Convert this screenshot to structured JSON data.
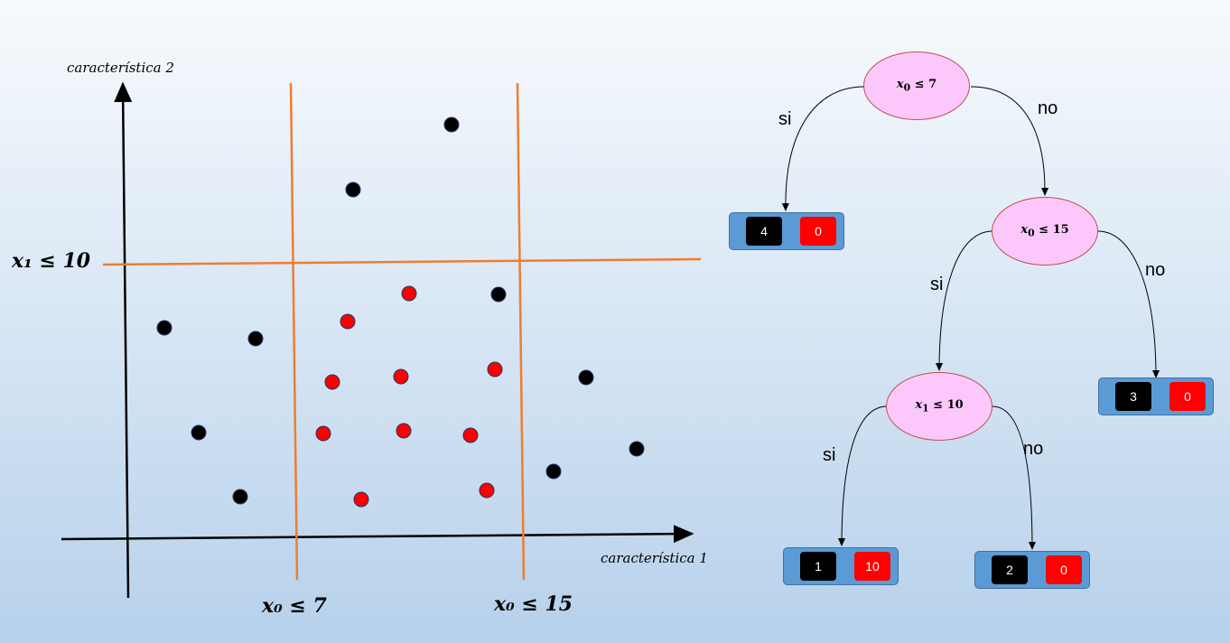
{
  "plot": {
    "x_axis_label": "característica 1",
    "y_axis_label": "característica 2",
    "split_labels": {
      "horizontal": "x₁ ≤ 10",
      "vertical_left": "x₀ ≤ 7",
      "vertical_right": "x₀ ≤ 15"
    },
    "line_color": "#ed7d31",
    "point_colors": {
      "black": "#000000",
      "red": "#ff0000"
    }
  },
  "tree": {
    "root": {
      "var": "x",
      "sub": "0",
      "op": "≤",
      "val": "7"
    },
    "node2": {
      "var": "x",
      "sub": "0",
      "op": "≤",
      "val": "15"
    },
    "node3": {
      "var": "x",
      "sub": "1",
      "op": "≤",
      "val": "10"
    },
    "edge_labels": {
      "root_yes": "si",
      "root_no": "no",
      "node2_yes": "si",
      "node2_no": "no",
      "node3_yes": "si",
      "node3_no": "no"
    },
    "leaves": [
      {
        "black": "4",
        "red": "0"
      },
      {
        "black": "3",
        "red": "0"
      },
      {
        "black": "1",
        "red": "10"
      },
      {
        "black": "2",
        "red": "0"
      }
    ],
    "node_fill": "#fcc8fc",
    "leaf_fill": "#5b9bd5"
  }
}
